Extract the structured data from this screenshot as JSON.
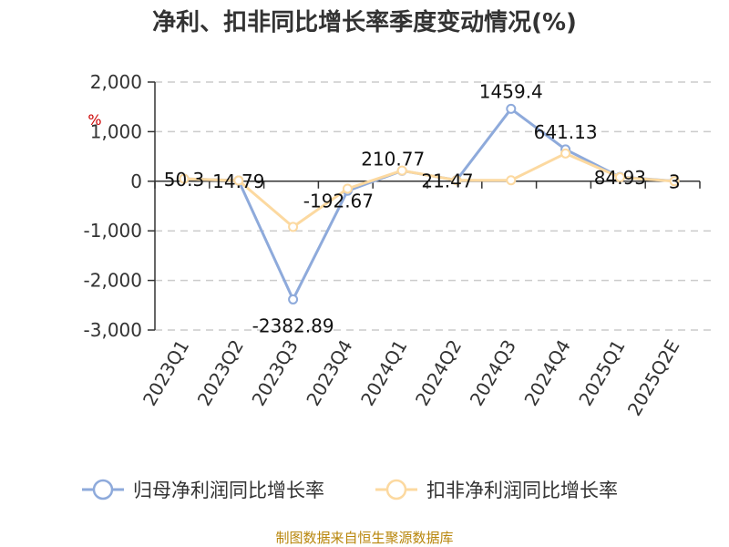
{
  "chart_data": {
    "type": "line",
    "title": "净利、扣非同比增长率季度变动情况(%)",
    "unit_label": "%",
    "categories": [
      "2023Q1",
      "2023Q2",
      "2023Q3",
      "2023Q4",
      "2024Q1",
      "2024Q2",
      "2024Q3",
      "2024Q4",
      "2025Q1",
      "2025Q2E"
    ],
    "series": [
      {
        "name": "归母净利润同比增长率",
        "color": "#8eaadb",
        "values": [
          50.3,
          14.79,
          -2382.89,
          -192.67,
          210.77,
          21.47,
          1459.4,
          641.13,
          84.93,
          3
        ],
        "labels": [
          "50.3",
          "14.79",
          "-2382.89",
          "-192.67",
          "210.77",
          "21.47",
          "1459.4",
          "641.13",
          "84.93",
          "3"
        ]
      },
      {
        "name": "扣非净利润同比增长率",
        "color": "#fcd9a0",
        "values": [
          50,
          14,
          -920,
          -150,
          215,
          20,
          20,
          560,
          80,
          0
        ]
      }
    ],
    "ylim": [
      -3000,
      2000
    ],
    "yticks": [
      "2,000",
      "1,000",
      "0",
      "-1,000",
      "-2,000",
      "-3,000"
    ],
    "ytick_values": [
      2000,
      1000,
      0,
      -1000,
      -2000,
      -3000
    ],
    "grid": true,
    "legend_position": "bottom"
  },
  "source": "制图数据来自恒生聚源数据库"
}
